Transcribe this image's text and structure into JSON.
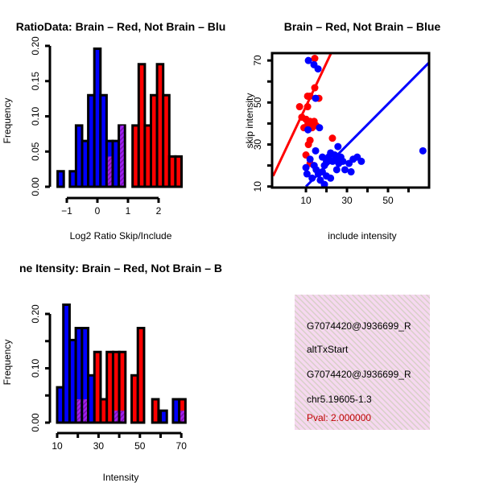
{
  "chart_data": [
    {
      "type": "bar",
      "title": "RatioData: Brain – Red, Not Brain – Blu",
      "xlabel": "Log2 Ratio Skip/Include",
      "ylabel": "Frequency",
      "xlim": [
        -1.4,
        2.9
      ],
      "ylim": [
        0,
        0.2
      ],
      "xticks": [
        -1,
        0,
        1,
        2
      ],
      "yticks": [
        0,
        0.05,
        0.1,
        0.15,
        0.2
      ],
      "ytick_labels": [
        "0.00",
        "0.05",
        "0.10",
        "0.15",
        "0.20"
      ],
      "bin_width": 0.2,
      "series": [
        {
          "name": "Not Brain",
          "color": "#0000ff",
          "bins": [
            -1.3,
            -1.1,
            -0.9,
            -0.7,
            -0.5,
            -0.3,
            -0.1,
            0.1,
            0.3,
            0.5,
            0.7
          ],
          "values": [
            0.022,
            0,
            0.022,
            0.087,
            0.065,
            0.13,
            0.196,
            0.13,
            0.065,
            0.065,
            0.087
          ]
        },
        {
          "name": "Brain",
          "color": "#ff0000",
          "bins": [
            0.3,
            0.7,
            1.15,
            1.35,
            1.55,
            1.75,
            1.95,
            2.15,
            2.35,
            2.55
          ],
          "values": [
            0.043,
            0.087,
            0.087,
            0.174,
            0.087,
            0.13,
            0.174,
            0.13,
            0.043,
            0.043
          ]
        }
      ],
      "overlap_color": "#a020f0"
    },
    {
      "type": "scatter",
      "title": "Brain – Red, Not Brain – Blue",
      "xlabel": "include intensity",
      "ylabel": "skip intensity",
      "xlim": [
        -6.5,
        70
      ],
      "ylim": [
        9.5,
        73.5
      ],
      "xticks": [
        10,
        20,
        30,
        40,
        50,
        60
      ],
      "xtick_labels": [
        "10",
        "",
        "30",
        "",
        "50",
        ""
      ],
      "yticks": [
        10,
        20,
        30,
        40,
        50,
        60,
        70
      ],
      "ytick_labels": [
        "10",
        "",
        "30",
        "",
        "50",
        "",
        "70"
      ],
      "series": [
        {
          "name": "Brain",
          "color": "#ff0000",
          "points": [
            [
              14.3,
              71
            ],
            [
              14.3,
              57
            ],
            [
              10.8,
              53
            ],
            [
              12,
              53
            ],
            [
              16.3,
              52
            ],
            [
              6.9,
              48
            ],
            [
              10.8,
              48
            ],
            [
              8,
              43
            ],
            [
              10,
              42
            ],
            [
              12,
              41
            ],
            [
              14,
              41
            ],
            [
              9,
              38
            ],
            [
              13,
              38
            ],
            [
              15,
              39
            ],
            [
              11,
              40
            ],
            [
              12,
              32
            ],
            [
              11.2,
              30
            ],
            [
              10,
              25
            ],
            [
              22.9,
              33
            ],
            [
              12,
              21
            ]
          ],
          "fit": [
            [
              -6,
              15
            ],
            [
              22.5,
              74
            ]
          ]
        },
        {
          "name": "Not Brain",
          "color": "#0000ff",
          "points": [
            [
              11.2,
              70
            ],
            [
              13.9,
              68
            ],
            [
              15.9,
              66
            ],
            [
              14.7,
              52
            ],
            [
              16.6,
              38
            ],
            [
              11,
              37
            ],
            [
              67,
              27
            ],
            [
              14.7,
              27
            ],
            [
              25.6,
              29
            ],
            [
              12,
              23
            ],
            [
              10,
              19
            ],
            [
              10.5,
              16
            ],
            [
              14,
              20
            ],
            [
              13,
              14
            ],
            [
              15,
              18
            ],
            [
              16,
              16
            ],
            [
              17,
              13
            ],
            [
              18,
              17
            ],
            [
              19,
              11
            ],
            [
              20,
              15
            ],
            [
              19,
              20
            ],
            [
              21,
              24
            ],
            [
              22,
              26
            ],
            [
              23,
              22
            ],
            [
              24,
              25
            ],
            [
              25,
              23
            ],
            [
              26,
              21
            ],
            [
              27,
              24
            ],
            [
              28,
              22
            ],
            [
              29,
              18
            ],
            [
              31,
              21
            ],
            [
              33,
              23
            ],
            [
              35,
              24
            ],
            [
              37,
              22
            ],
            [
              32,
              17
            ],
            [
              22,
              14
            ],
            [
              20,
              22
            ],
            [
              18,
              24
            ],
            [
              25,
              18
            ]
          ],
          "fit": [
            [
              10,
              10
            ],
            [
              70,
              69
            ]
          ]
        }
      ]
    },
    {
      "type": "bar",
      "title": "ne Itensity: Brain – Red, Not Brain – B",
      "xlabel": "Intensity",
      "ylabel": "Frequency",
      "xlim": [
        8,
        73
      ],
      "ylim": [
        0,
        0.2
      ],
      "xticks": [
        10,
        20,
        30,
        40,
        50,
        60,
        70
      ],
      "xtick_labels": [
        "10",
        "",
        "30",
        "",
        "50",
        "",
        "70"
      ],
      "yticks": [
        0,
        0.05,
        0.1,
        0.15,
        0.2
      ],
      "ytick_labels": [
        "0.00",
        "",
        "0.10",
        "",
        "0.20"
      ],
      "bin_width": 3,
      "series": [
        {
          "name": "Not Brain",
          "color": "#0000ff",
          "bins": [
            10,
            13,
            16,
            19,
            22,
            25,
            37,
            40,
            60,
            63,
            66,
            69
          ],
          "values": [
            0.065,
            0.217,
            0.152,
            0.174,
            0.174,
            0.087,
            0.022,
            0.022,
            0.022,
            0,
            0.043,
            0.022
          ]
        },
        {
          "name": "Brain",
          "color": "#ff0000",
          "bins": [
            19,
            22,
            28,
            31,
            34,
            37,
            40,
            46,
            49,
            56,
            69
          ],
          "values": [
            0.043,
            0.043,
            0.13,
            0.043,
            0.13,
            0.13,
            0.13,
            0.087,
            0.174,
            0.043,
            0.043
          ]
        }
      ],
      "overlap_color": "#a020f0"
    }
  ],
  "info_box": {
    "lines": [
      "G7074420@J936699_R",
      "altTxStart",
      "G7074420@J936699_R",
      "chr5.19605-1.3"
    ],
    "pval": "Pval: 2.000000",
    "pval_color": "#c00000"
  }
}
